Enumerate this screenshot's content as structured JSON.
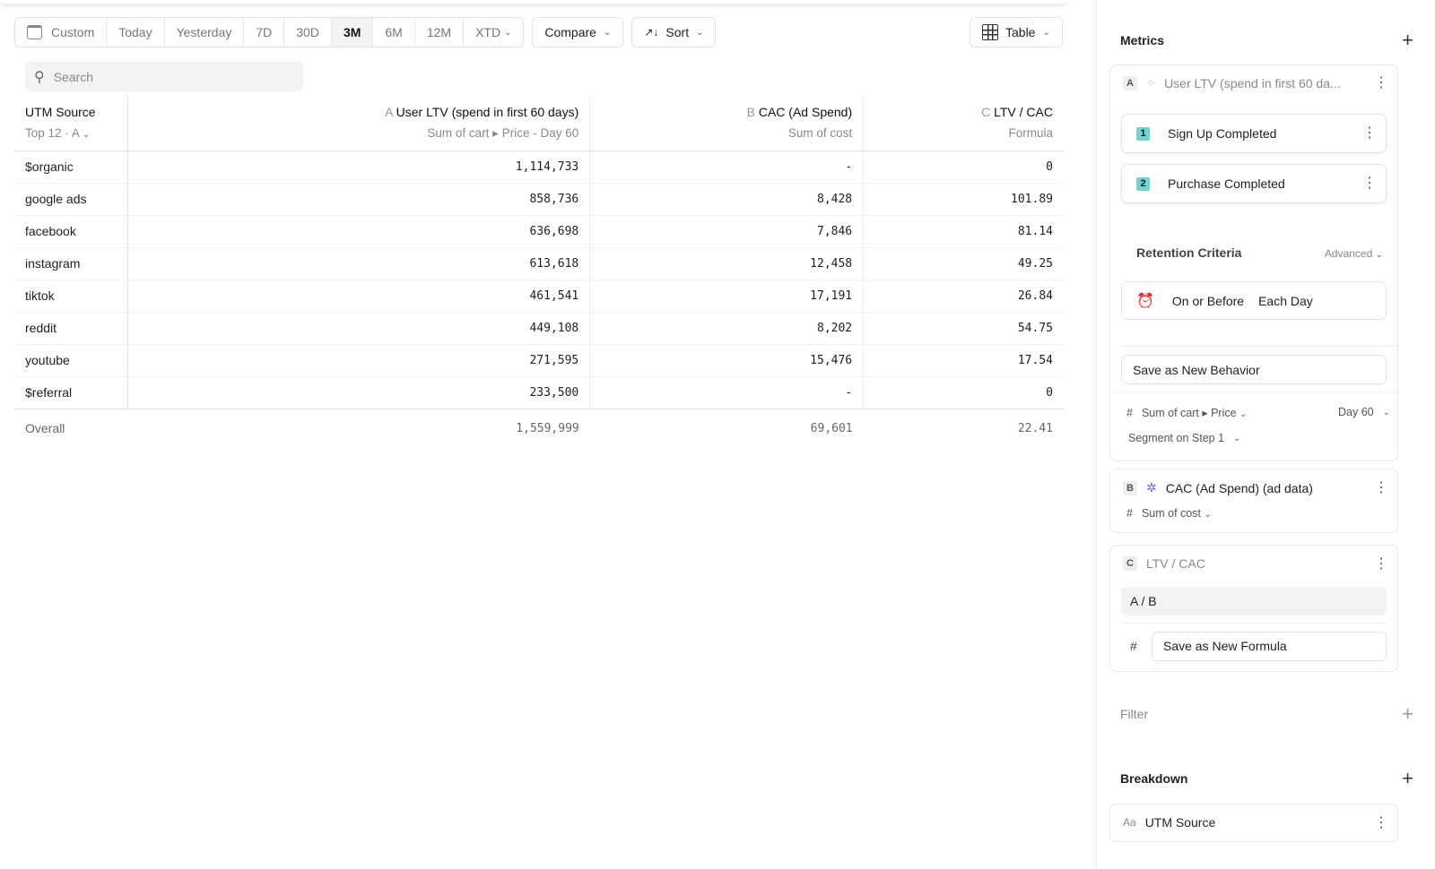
{
  "toolbar": {
    "date_ranges": [
      "Custom",
      "Today",
      "Yesterday",
      "7D",
      "30D",
      "3M",
      "6M",
      "12M",
      "XTD"
    ],
    "active": "3M",
    "compare": "Compare",
    "sort": "Sort",
    "view": "Table"
  },
  "search": {
    "placeholder": "Search"
  },
  "table": {
    "columns": [
      {
        "letter": "",
        "title": "UTM Source",
        "sub": "Top 12 · A"
      },
      {
        "letter": "A",
        "title": "User LTV (spend in first 60 days)",
        "sub": "Sum of cart ▸ Price - Day 60"
      },
      {
        "letter": "B",
        "title": "CAC (Ad Spend)",
        "sub": "Sum of cost"
      },
      {
        "letter": "C",
        "title": "LTV / CAC",
        "sub": "Formula"
      }
    ],
    "rows": [
      [
        "$organic",
        "1,114,733",
        "-",
        "0"
      ],
      [
        "google ads",
        "858,736",
        "8,428",
        "101.89"
      ],
      [
        "facebook",
        "636,698",
        "7,846",
        "81.14"
      ],
      [
        "instagram",
        "613,618",
        "12,458",
        "49.25"
      ],
      [
        "tiktok",
        "461,541",
        "17,191",
        "26.84"
      ],
      [
        "reddit",
        "449,108",
        "8,202",
        "54.75"
      ],
      [
        "youtube",
        "271,595",
        "15,476",
        "17.54"
      ],
      [
        "$referral",
        "233,500",
        "-",
        "0"
      ]
    ],
    "overall": [
      "Overall",
      "1,559,999",
      "69,601",
      "22.41"
    ]
  },
  "sidebar": {
    "metrics_title": "Metrics",
    "a": {
      "letter": "A",
      "title": "User LTV (spend in first 60 da...",
      "steps": [
        {
          "n": "1",
          "label": "Sign Up Completed"
        },
        {
          "n": "2",
          "label": "Purchase Completed"
        }
      ],
      "retention_title": "Retention Criteria",
      "advanced": "Advanced",
      "on_or_before": "On or Before",
      "each_day": "Each Day",
      "save_behavior": "Save as New Behavior",
      "hash": "#",
      "agg": "Sum of cart ▸ Price",
      "day": "Day 60",
      "segment": "Segment on Step 1"
    },
    "b": {
      "letter": "B",
      "title": "CAC (Ad Spend) (ad data)",
      "hash": "#",
      "agg": "Sum of cost"
    },
    "c": {
      "letter": "C",
      "title": "LTV / CAC",
      "formula": "A / B",
      "hash": "#",
      "save_formula": "Save as New Formula"
    },
    "filter_title": "Filter",
    "breakdown_title": "Breakdown",
    "breakdown": {
      "prefix": "Aa",
      "label": "UTM Source"
    },
    "accent": "#6fd6c9"
  }
}
